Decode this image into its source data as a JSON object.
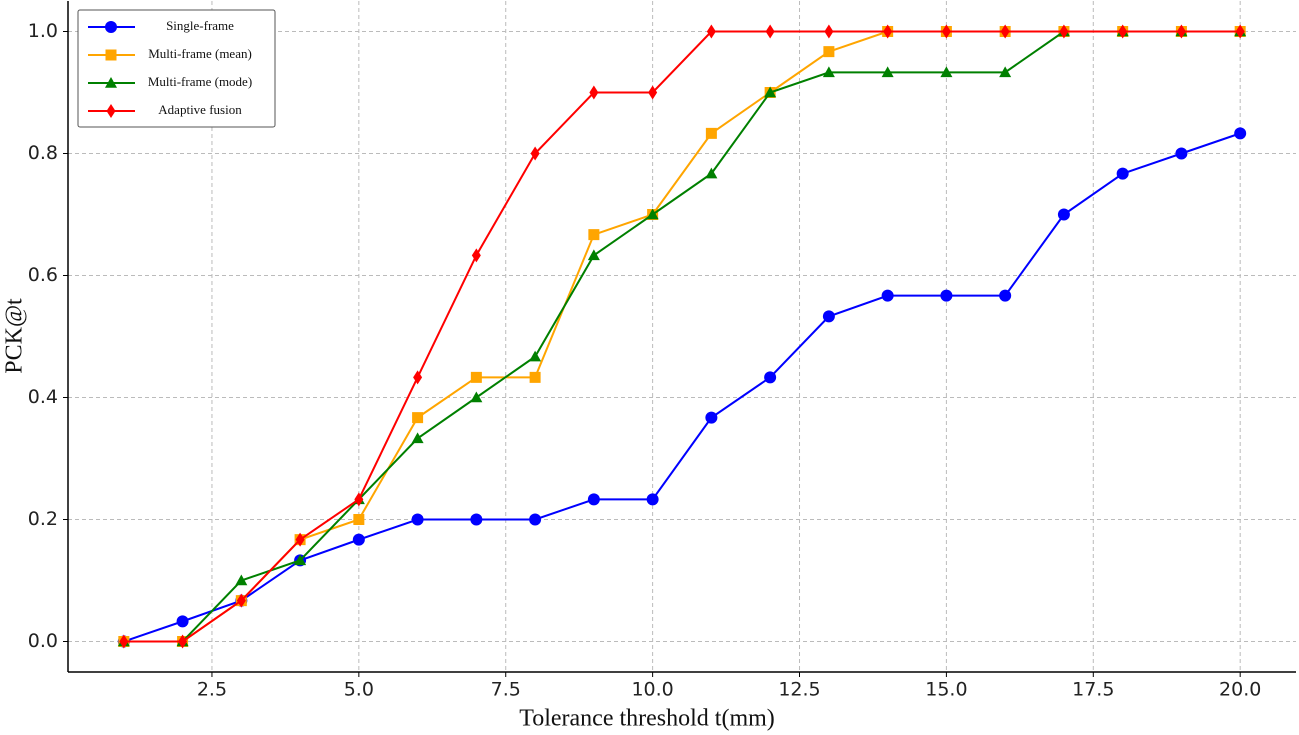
{
  "chart_data": {
    "type": "line",
    "x_label": "Tolerance threshold  t(mm)",
    "y_label": "PCK@t",
    "x": [
      1,
      2,
      3,
      4,
      5,
      6,
      7,
      8,
      9,
      10,
      11,
      12,
      13,
      14,
      15,
      16,
      17,
      18,
      19,
      20
    ],
    "series": [
      {
        "name": "Single-frame",
        "color": "#0000ff",
        "marker": "circle",
        "values": [
          0,
          0.033,
          0.067,
          0.133,
          0.167,
          0.2,
          0.2,
          0.2,
          0.233,
          0.233,
          0.367,
          0.433,
          0.533,
          0.567,
          0.567,
          0.567,
          0.7,
          0.767,
          0.8,
          0.833
        ]
      },
      {
        "name": "Multi-frame (mean)",
        "color": "#ffa500",
        "marker": "square",
        "values": [
          0,
          0,
          0.067,
          0.167,
          0.2,
          0.367,
          0.433,
          0.433,
          0.667,
          0.7,
          0.833,
          0.9,
          0.967,
          1,
          1,
          1,
          1,
          1,
          1,
          1
        ]
      },
      {
        "name": "Multi-frame (mode)",
        "color": "#008000",
        "marker": "triangle",
        "values": [
          0,
          0,
          0.1,
          0.133,
          0.233,
          0.333,
          0.4,
          0.467,
          0.633,
          0.7,
          0.767,
          0.9,
          0.933,
          0.933,
          0.933,
          0.933,
          1,
          1,
          1,
          1
        ]
      },
      {
        "name": "Adaptive fusion",
        "color": "#ff0000",
        "marker": "diamond",
        "values": [
          0,
          0,
          0.067,
          0.167,
          0.233,
          0.433,
          0.633,
          0.8,
          0.9,
          0.9,
          1,
          1,
          1,
          1,
          1,
          1,
          1,
          1,
          1,
          1
        ]
      }
    ],
    "xlim": [
      0.05,
      20.95
    ],
    "ylim": [
      -0.05,
      1.05
    ],
    "xticks": [
      2.5,
      {
        "value": 5,
        "label": "5.0"
      },
      7.5,
      {
        "value": 10,
        "label": "10.0"
      },
      12.5,
      {
        "value": 15,
        "label": "15.0"
      },
      17.5,
      {
        "value": 20,
        "label": "20.0"
      }
    ],
    "yticks": [
      {
        "value": 0,
        "label": "0.0"
      },
      0.2,
      0.4,
      0.6,
      0.8,
      {
        "value": 1,
        "label": "1.0"
      }
    ],
    "grid": true,
    "legend": "upper left"
  }
}
